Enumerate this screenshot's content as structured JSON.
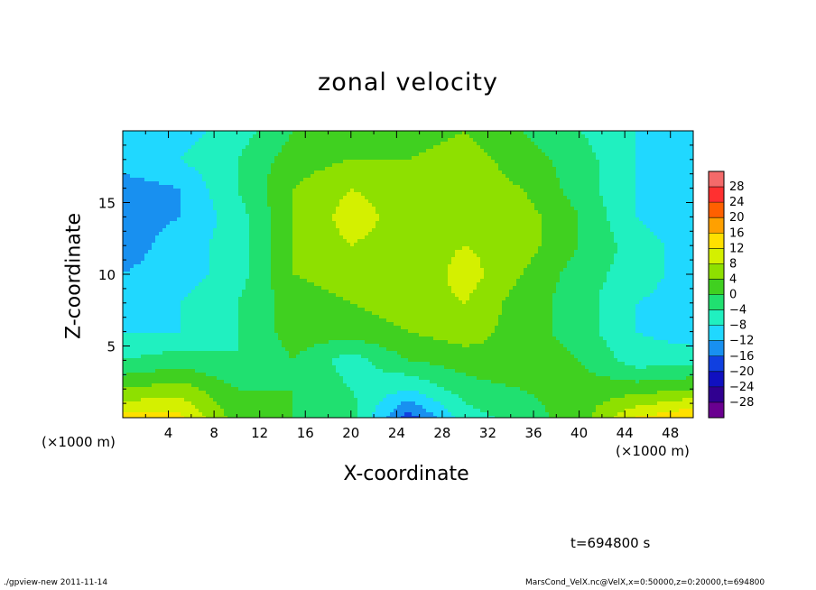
{
  "chart_data": {
    "type": "heatmap",
    "title": "zonal velocity",
    "xlabel": "X-coordinate",
    "ylabel": "Z-coordinate",
    "x_unit_label": "(×1000 m)",
    "x_range": [
      0,
      50
    ],
    "y_range": [
      0,
      20
    ],
    "x_ticks": [
      4,
      8,
      12,
      16,
      20,
      24,
      28,
      32,
      36,
      40,
      44,
      48
    ],
    "y_ticks": [
      5,
      10,
      15
    ],
    "colorbar_levels": [
      28,
      24,
      20,
      16,
      12,
      8,
      4,
      0,
      -4,
      -8,
      -12,
      -16,
      -20,
      -24,
      -28
    ],
    "colorbar_colors": [
      "#f46a6a",
      "#ff3030",
      "#ff6000",
      "#ffa000",
      "#ffe000",
      "#d4f000",
      "#8ee000",
      "#40d020",
      "#20e070",
      "#20f0c0",
      "#20d8ff",
      "#1890f0",
      "#1040e0",
      "#1010c0",
      "#300090",
      "#6a0090"
    ],
    "field_samples_x": [
      0,
      5,
      10,
      15,
      20,
      25,
      30,
      35,
      40,
      45,
      50
    ],
    "field_samples_z": [
      0,
      2,
      4,
      6,
      8,
      10,
      12,
      14,
      16,
      18,
      20
    ],
    "field_values": [
      [
        14,
        13,
        2,
        0,
        -2,
        -18,
        -6,
        -2,
        2,
        12,
        16
      ],
      [
        4,
        6,
        0,
        0,
        -4,
        -8,
        -2,
        0,
        2,
        2,
        4
      ],
      [
        -4,
        -2,
        -4,
        0,
        -6,
        0,
        2,
        4,
        0,
        -6,
        -6
      ],
      [
        -8,
        -8,
        -4,
        2,
        2,
        4,
        6,
        2,
        -2,
        -8,
        -10
      ],
      [
        -10,
        -8,
        -4,
        2,
        4,
        6,
        8,
        2,
        -2,
        -8,
        -10
      ],
      [
        -12,
        -10,
        -6,
        4,
        6,
        4,
        10,
        4,
        -2,
        -6,
        -10
      ],
      [
        -14,
        -10,
        -6,
        4,
        8,
        6,
        8,
        6,
        0,
        -6,
        -10
      ],
      [
        -14,
        -12,
        -6,
        4,
        10,
        6,
        6,
        6,
        0,
        -8,
        -12
      ],
      [
        -14,
        -12,
        -4,
        4,
        8,
        6,
        6,
        4,
        -2,
        -8,
        -10
      ],
      [
        -10,
        -8,
        -4,
        2,
        4,
        4,
        6,
        2,
        -2,
        -8,
        -10
      ],
      [
        -12,
        -10,
        -6,
        0,
        2,
        2,
        4,
        0,
        -4,
        -8,
        -10
      ]
    ]
  },
  "annotations": {
    "time": "t=694800 s",
    "footer_left": "./gpview-new  2011-11-14",
    "footer_right": "MarsCond_VelX.nc@VelX,x=0:50000,z=0:20000,t=694800"
  }
}
